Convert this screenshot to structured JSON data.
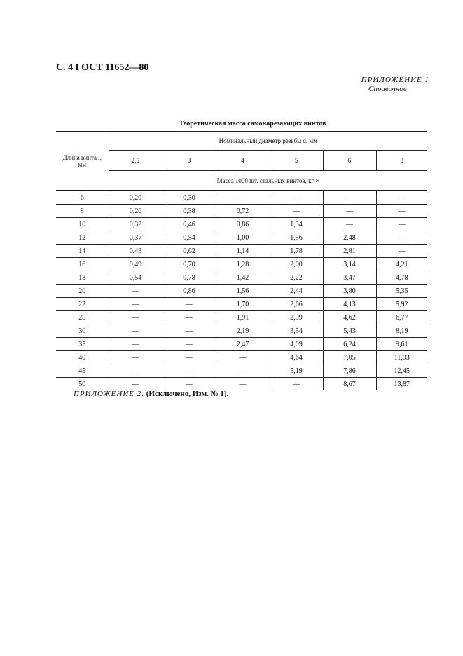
{
  "page_header": "С. 4 ГОСТ 11652—80",
  "appendix1": {
    "label": "ПРИЛОЖЕНИЕ 1",
    "sublabel": "Справочное"
  },
  "table": {
    "title": "Теоретическая масса самонарезающих винтов",
    "row_header": "Длина винта l, мм",
    "group_header": "Номинальный диаметр резьбы d, мм",
    "diameters": [
      "2,5",
      "3",
      "4",
      "5",
      "6",
      "8"
    ],
    "unit_header": "Масса 1000 шт. стальных винтов, кг ≈",
    "rows": [
      [
        "6",
        "0,20",
        "0,30",
        "—",
        "—",
        "—",
        "—"
      ],
      [
        "8",
        "0,26",
        "0,38",
        "0,72",
        "—",
        "—",
        "—"
      ],
      [
        "10",
        "0,32",
        "0,46",
        "0,86",
        "1,34",
        "—",
        "—"
      ],
      [
        "12",
        "0,37",
        "0,54",
        "1,00",
        "1,56",
        "2,48",
        "—"
      ],
      [
        "14",
        "0,43",
        "0,62",
        "1,14",
        "1,78",
        "2,81",
        "—"
      ],
      [
        "16",
        "0,49",
        "0,70",
        "1,28",
        "2,00",
        "3,14",
        "4,21"
      ],
      [
        "18",
        "0,54",
        "0,78",
        "1,42",
        "2,22",
        "3,47",
        "4,78"
      ],
      [
        "20",
        "—",
        "0,86",
        "1,56",
        "2,44",
        "3,80",
        "5,35"
      ],
      [
        "22",
        "—",
        "—",
        "1,70",
        "2,66",
        "4,13",
        "5,92"
      ],
      [
        "25",
        "—",
        "—",
        "1,91",
        "2,99",
        "4,62",
        "6,77"
      ],
      [
        "30",
        "—",
        "—",
        "2,19",
        "3,54",
        "5,43",
        "8,19"
      ],
      [
        "35",
        "—",
        "—",
        "2,47",
        "4,09",
        "6,24",
        "9,61"
      ],
      [
        "40",
        "—",
        "—",
        "—",
        "4,64",
        "7,05",
        "11,03"
      ],
      [
        "45",
        "—",
        "—",
        "—",
        "5,19",
        "7,86",
        "12,45"
      ],
      [
        "50",
        "—",
        "—",
        "—",
        "—",
        "8,67",
        "13,87"
      ]
    ]
  },
  "appendix2": {
    "label": "ПРИЛОЖЕНИЕ 2.",
    "note": "(Исключено, Изм. № 1)."
  }
}
